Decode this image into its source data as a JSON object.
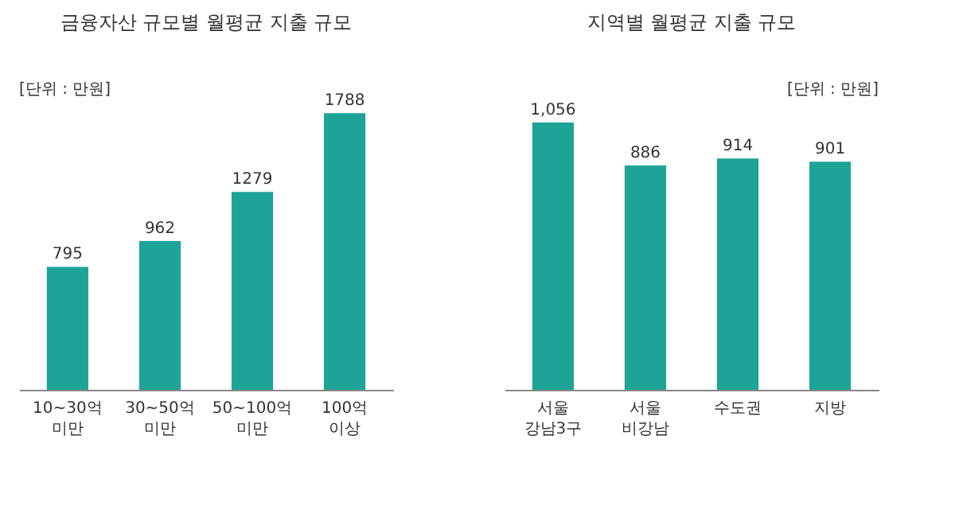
{
  "chart_data": [
    {
      "type": "bar",
      "title": "금융자산 규모별 월평균 지출 규모",
      "annotations": [
        "[단위 : 만원]"
      ],
      "categories": [
        "10~30억\n미만",
        "30~50억\n미만",
        "50~100억\n미만",
        "100억\n이상"
      ],
      "values": [
        795,
        962,
        1279,
        1788
      ],
      "color": "#1ea397",
      "data_labels": true
    },
    {
      "type": "bar",
      "title": "지역별 월평균 지출 규모",
      "annotations": [
        "[단위 : 만원]"
      ],
      "categories": [
        "서울\n강남3구",
        "서울\n비강남",
        "수도권",
        "지방"
      ],
      "values": [
        1056,
        886,
        914,
        901
      ],
      "color": "#1ea397",
      "value_labels": [
        "1,056",
        "886",
        "914",
        "901"
      ]
    }
  ]
}
